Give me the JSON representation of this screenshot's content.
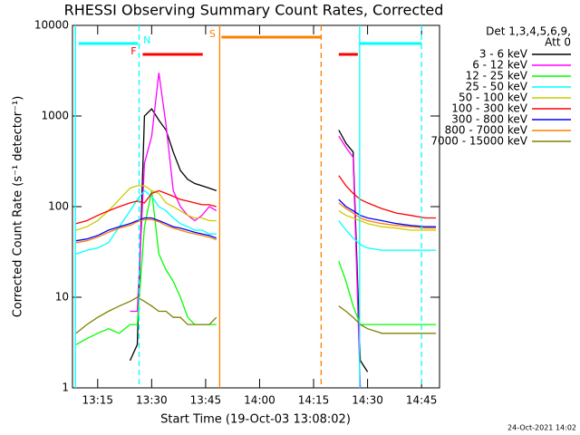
{
  "chart_data": {
    "type": "line",
    "title": "RHESSI Observing Summary Count Rates, Corrected",
    "x_label": "Start Time (19-Oct-03 13:08:02)",
    "y_label": "Corrected Count Rate (s⁻¹ detector⁻¹)",
    "legend_header": [
      "Det 1,3,4,5,6,9,",
      "Att 0"
    ],
    "footer": "24-Oct-2021 14:02",
    "log_y": true,
    "xlim": [
      788,
      890
    ],
    "ylim": [
      1,
      10000
    ],
    "yticks": [
      1,
      10,
      100,
      1000,
      10000
    ],
    "xticks": [
      {
        "value": 795,
        "label": "13:15"
      },
      {
        "value": 810,
        "label": "13:30"
      },
      {
        "value": 825,
        "label": "13:45"
      },
      {
        "value": 840,
        "label": "14:00"
      },
      {
        "value": 855,
        "label": "14:15"
      },
      {
        "value": 870,
        "label": "14:30"
      },
      {
        "value": 885,
        "label": "14:45"
      }
    ],
    "x": [
      789,
      792,
      795,
      798,
      801,
      804,
      806,
      808,
      810,
      812,
      814,
      816,
      818,
      820,
      822,
      824,
      826,
      828,
      843,
      862,
      864,
      866,
      868,
      870,
      874,
      878,
      882,
      886,
      889
    ],
    "series": [
      {
        "name": "3 - 6 keV",
        "color": "#000000",
        "values": [
          null,
          null,
          null,
          null,
          null,
          2,
          3,
          1000,
          1200,
          900,
          700,
          400,
          250,
          200,
          180,
          170,
          160,
          150,
          null,
          700,
          500,
          400,
          2,
          1.5,
          null,
          null,
          null,
          null,
          null
        ]
      },
      {
        "name": "6 - 12 keV",
        "color": "#ff00ff",
        "values": [
          null,
          null,
          null,
          null,
          null,
          7,
          7,
          300,
          600,
          3000,
          800,
          150,
          100,
          80,
          70,
          80,
          100,
          90,
          null,
          600,
          450,
          350,
          1,
          null,
          null,
          null,
          null,
          null,
          null
        ]
      },
      {
        "name": "12 - 25 keV",
        "color": "#00ff00",
        "values": [
          3,
          3.5,
          4,
          4.5,
          4,
          5,
          5,
          60,
          150,
          30,
          20,
          15,
          10,
          6,
          5,
          5,
          5,
          5,
          null,
          25,
          15,
          8,
          5,
          5,
          5,
          5,
          5,
          5,
          5
        ]
      },
      {
        "name": "25 - 50 keV",
        "color": "#00ffff",
        "values": [
          30,
          33,
          35,
          40,
          60,
          90,
          120,
          150,
          130,
          100,
          90,
          75,
          65,
          60,
          55,
          55,
          50,
          50,
          null,
          70,
          55,
          45,
          38,
          35,
          33,
          33,
          33,
          33,
          33
        ]
      },
      {
        "name": "50 - 100 keV",
        "color": "#cccc00",
        "values": [
          55,
          60,
          70,
          90,
          120,
          160,
          170,
          170,
          150,
          140,
          110,
          100,
          90,
          80,
          75,
          75,
          70,
          70,
          null,
          90,
          80,
          75,
          70,
          65,
          60,
          58,
          55,
          55,
          55
        ]
      },
      {
        "name": "100 - 300 keV",
        "color": "#ff0000",
        "values": [
          65,
          70,
          80,
          90,
          100,
          110,
          115,
          110,
          140,
          150,
          140,
          130,
          120,
          115,
          110,
          105,
          105,
          100,
          null,
          220,
          170,
          140,
          120,
          110,
          95,
          85,
          80,
          75,
          75
        ]
      },
      {
        "name": "300 - 800 keV",
        "color": "#0000ff",
        "values": [
          42,
          44,
          48,
          55,
          60,
          65,
          70,
          75,
          75,
          70,
          65,
          60,
          58,
          55,
          52,
          50,
          48,
          45,
          null,
          120,
          100,
          90,
          80,
          75,
          70,
          65,
          62,
          60,
          60
        ]
      },
      {
        "name": "800 - 7000 keV",
        "color": "#ff8000",
        "values": [
          40,
          42,
          46,
          52,
          58,
          62,
          68,
          72,
          72,
          68,
          62,
          58,
          55,
          52,
          50,
          48,
          46,
          43,
          null,
          110,
          95,
          85,
          75,
          70,
          65,
          62,
          60,
          58,
          58
        ]
      },
      {
        "name": "7000 - 15000 keV",
        "color": "#808000",
        "values": [
          4,
          5,
          6,
          7,
          8,
          9,
          10,
          9,
          8,
          7,
          7,
          6,
          6,
          5,
          5,
          5,
          5,
          6,
          null,
          8,
          7,
          6,
          5,
          4.5,
          4,
          4,
          4,
          4,
          4
        ]
      }
    ],
    "flags": [
      {
        "label": "N",
        "color": "#00ffff",
        "intervals": [
          [
            789.7,
            806.2
          ],
          [
            867.8,
            885
          ]
        ]
      },
      {
        "label": "F",
        "color": "#ff0000",
        "intervals": [
          [
            807.5,
            824.2
          ],
          [
            862,
            867.3
          ]
        ]
      },
      {
        "label": "S",
        "color": "#ff8000",
        "intervals": [
          [
            829.4,
            857.1
          ]
        ]
      }
    ],
    "vlines": [
      {
        "x": 788.8,
        "color": "#00ffff",
        "dashed": false
      },
      {
        "x": 806.5,
        "color": "#00ffff",
        "dashed": true
      },
      {
        "x": 867.8,
        "color": "#00ffff",
        "dashed": false
      },
      {
        "x": 885,
        "color": "#00ffff",
        "dashed": true
      },
      {
        "x": 828.9,
        "color": "#ff8000",
        "dashed": false
      },
      {
        "x": 857.1,
        "color": "#ff8000",
        "dashed": true
      }
    ]
  }
}
